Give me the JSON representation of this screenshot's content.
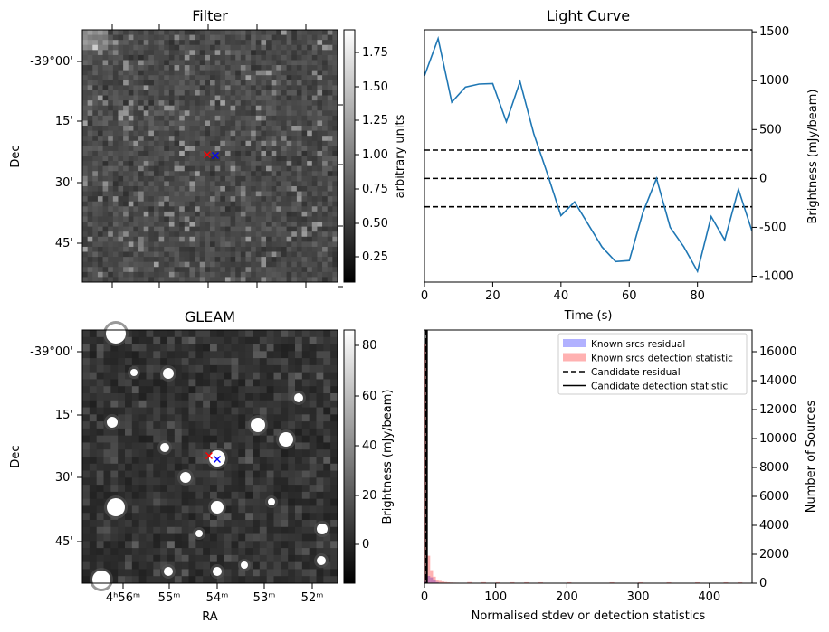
{
  "chart_data": [
    {
      "type": "heatmap",
      "title": "Filter",
      "xlabel": "",
      "ylabel": "Dec",
      "yticks": [
        "-39°00'",
        "15'",
        "30'",
        "45'"
      ],
      "colorbar": {
        "label": "arbitrary units",
        "range": [
          0.05,
          1.9
        ],
        "ticks": [
          "0.25",
          "0.50",
          "0.75",
          "1.00",
          "1.25",
          "1.50",
          "1.75"
        ],
        "colormap": "grayscale"
      },
      "markers": [
        {
          "symbol": "x",
          "color": "#ff0000"
        },
        {
          "symbol": "x",
          "color": "#0000ff"
        }
      ]
    },
    {
      "type": "line",
      "title": "Light Curve",
      "xlabel": "Time (s)",
      "ylabel": "Brightness (mJy/beam)",
      "xlim": [
        0,
        96
      ],
      "ylim": [
        -1060,
        1520
      ],
      "xticks": [
        0,
        20,
        40,
        60,
        80
      ],
      "yticks": [
        -1000,
        -500,
        0,
        500,
        1000,
        1500
      ],
      "series": [
        {
          "color": "#1f77b4",
          "x": [
            0,
            4,
            8,
            12,
            16,
            20,
            24,
            28,
            32,
            36,
            40,
            44,
            48,
            52,
            56,
            60,
            64,
            68,
            72,
            76,
            80,
            84,
            88,
            92,
            96
          ],
          "y": [
            1050,
            1430,
            780,
            935,
            965,
            970,
            580,
            990,
            460,
            50,
            -380,
            -240,
            -470,
            -700,
            -850,
            -840,
            -350,
            0,
            -500,
            -700,
            -950,
            -390,
            -630,
            -110,
            -540
          ]
        }
      ],
      "hlines": [
        {
          "y": 290,
          "style": "dashed"
        },
        {
          "y": 0,
          "style": "dashed"
        },
        {
          "y": -290,
          "style": "dashed"
        }
      ],
      "grid": false
    },
    {
      "type": "heatmap",
      "title": "GLEAM",
      "xlabel": "RA",
      "ylabel": "Dec",
      "xticks": [
        "4ʰ56ᵐ",
        "55ᵐ",
        "54ᵐ",
        "53ᵐ",
        "52ᵐ"
      ],
      "yticks": [
        "-39°00'",
        "15'",
        "30'",
        "45'"
      ],
      "colorbar": {
        "label": "Brightness (mJy/beam)",
        "range": [
          -15,
          85
        ],
        "ticks": [
          "0",
          "20",
          "40",
          "60",
          "80"
        ],
        "colormap": "grayscale"
      },
      "markers": [
        {
          "symbol": "x",
          "color": "#ff0000"
        },
        {
          "symbol": "x",
          "color": "#0000ff"
        }
      ]
    },
    {
      "type": "bar",
      "xlabel": "Normalised stdev or detection statistics",
      "ylabel": "Number of Sources",
      "xlim": [
        0,
        460
      ],
      "ylim": [
        0,
        17500
      ],
      "xticks": [
        0,
        100,
        200,
        300,
        400
      ],
      "yticks": [
        0,
        2000,
        4000,
        6000,
        8000,
        10000,
        12000,
        14000,
        16000
      ],
      "legend_position": "top-right",
      "legend": [
        {
          "label": "Known srcs residual",
          "kind": "patch",
          "color": "#6464ff"
        },
        {
          "label": "Known srcs detection statistic",
          "kind": "patch",
          "color": "#ff6464"
        },
        {
          "label": "Candidate residual",
          "kind": "dashed-line",
          "color": "#000000"
        },
        {
          "label": "Candidate detection statistic",
          "kind": "solid-line",
          "color": "#000000"
        }
      ],
      "series": [
        {
          "color": "#0000ff",
          "bin_edges": [
            0,
            4,
            8,
            12,
            16,
            20
          ],
          "counts": [
            120,
            500,
            400,
            200,
            80
          ]
        },
        {
          "color": "#ff0000",
          "bin_edges": [
            0,
            4,
            8,
            12,
            16,
            20,
            24,
            28,
            32,
            36,
            40,
            44,
            48,
            52,
            56,
            60
          ],
          "counts": [
            16500,
            1900,
            900,
            450,
            250,
            160,
            110,
            80,
            60,
            50,
            40,
            35,
            30,
            25,
            20
          ]
        }
      ],
      "vlines": [
        {
          "x": 1,
          "style": "dashed"
        },
        {
          "x": 2,
          "style": "solid"
        }
      ]
    }
  ]
}
